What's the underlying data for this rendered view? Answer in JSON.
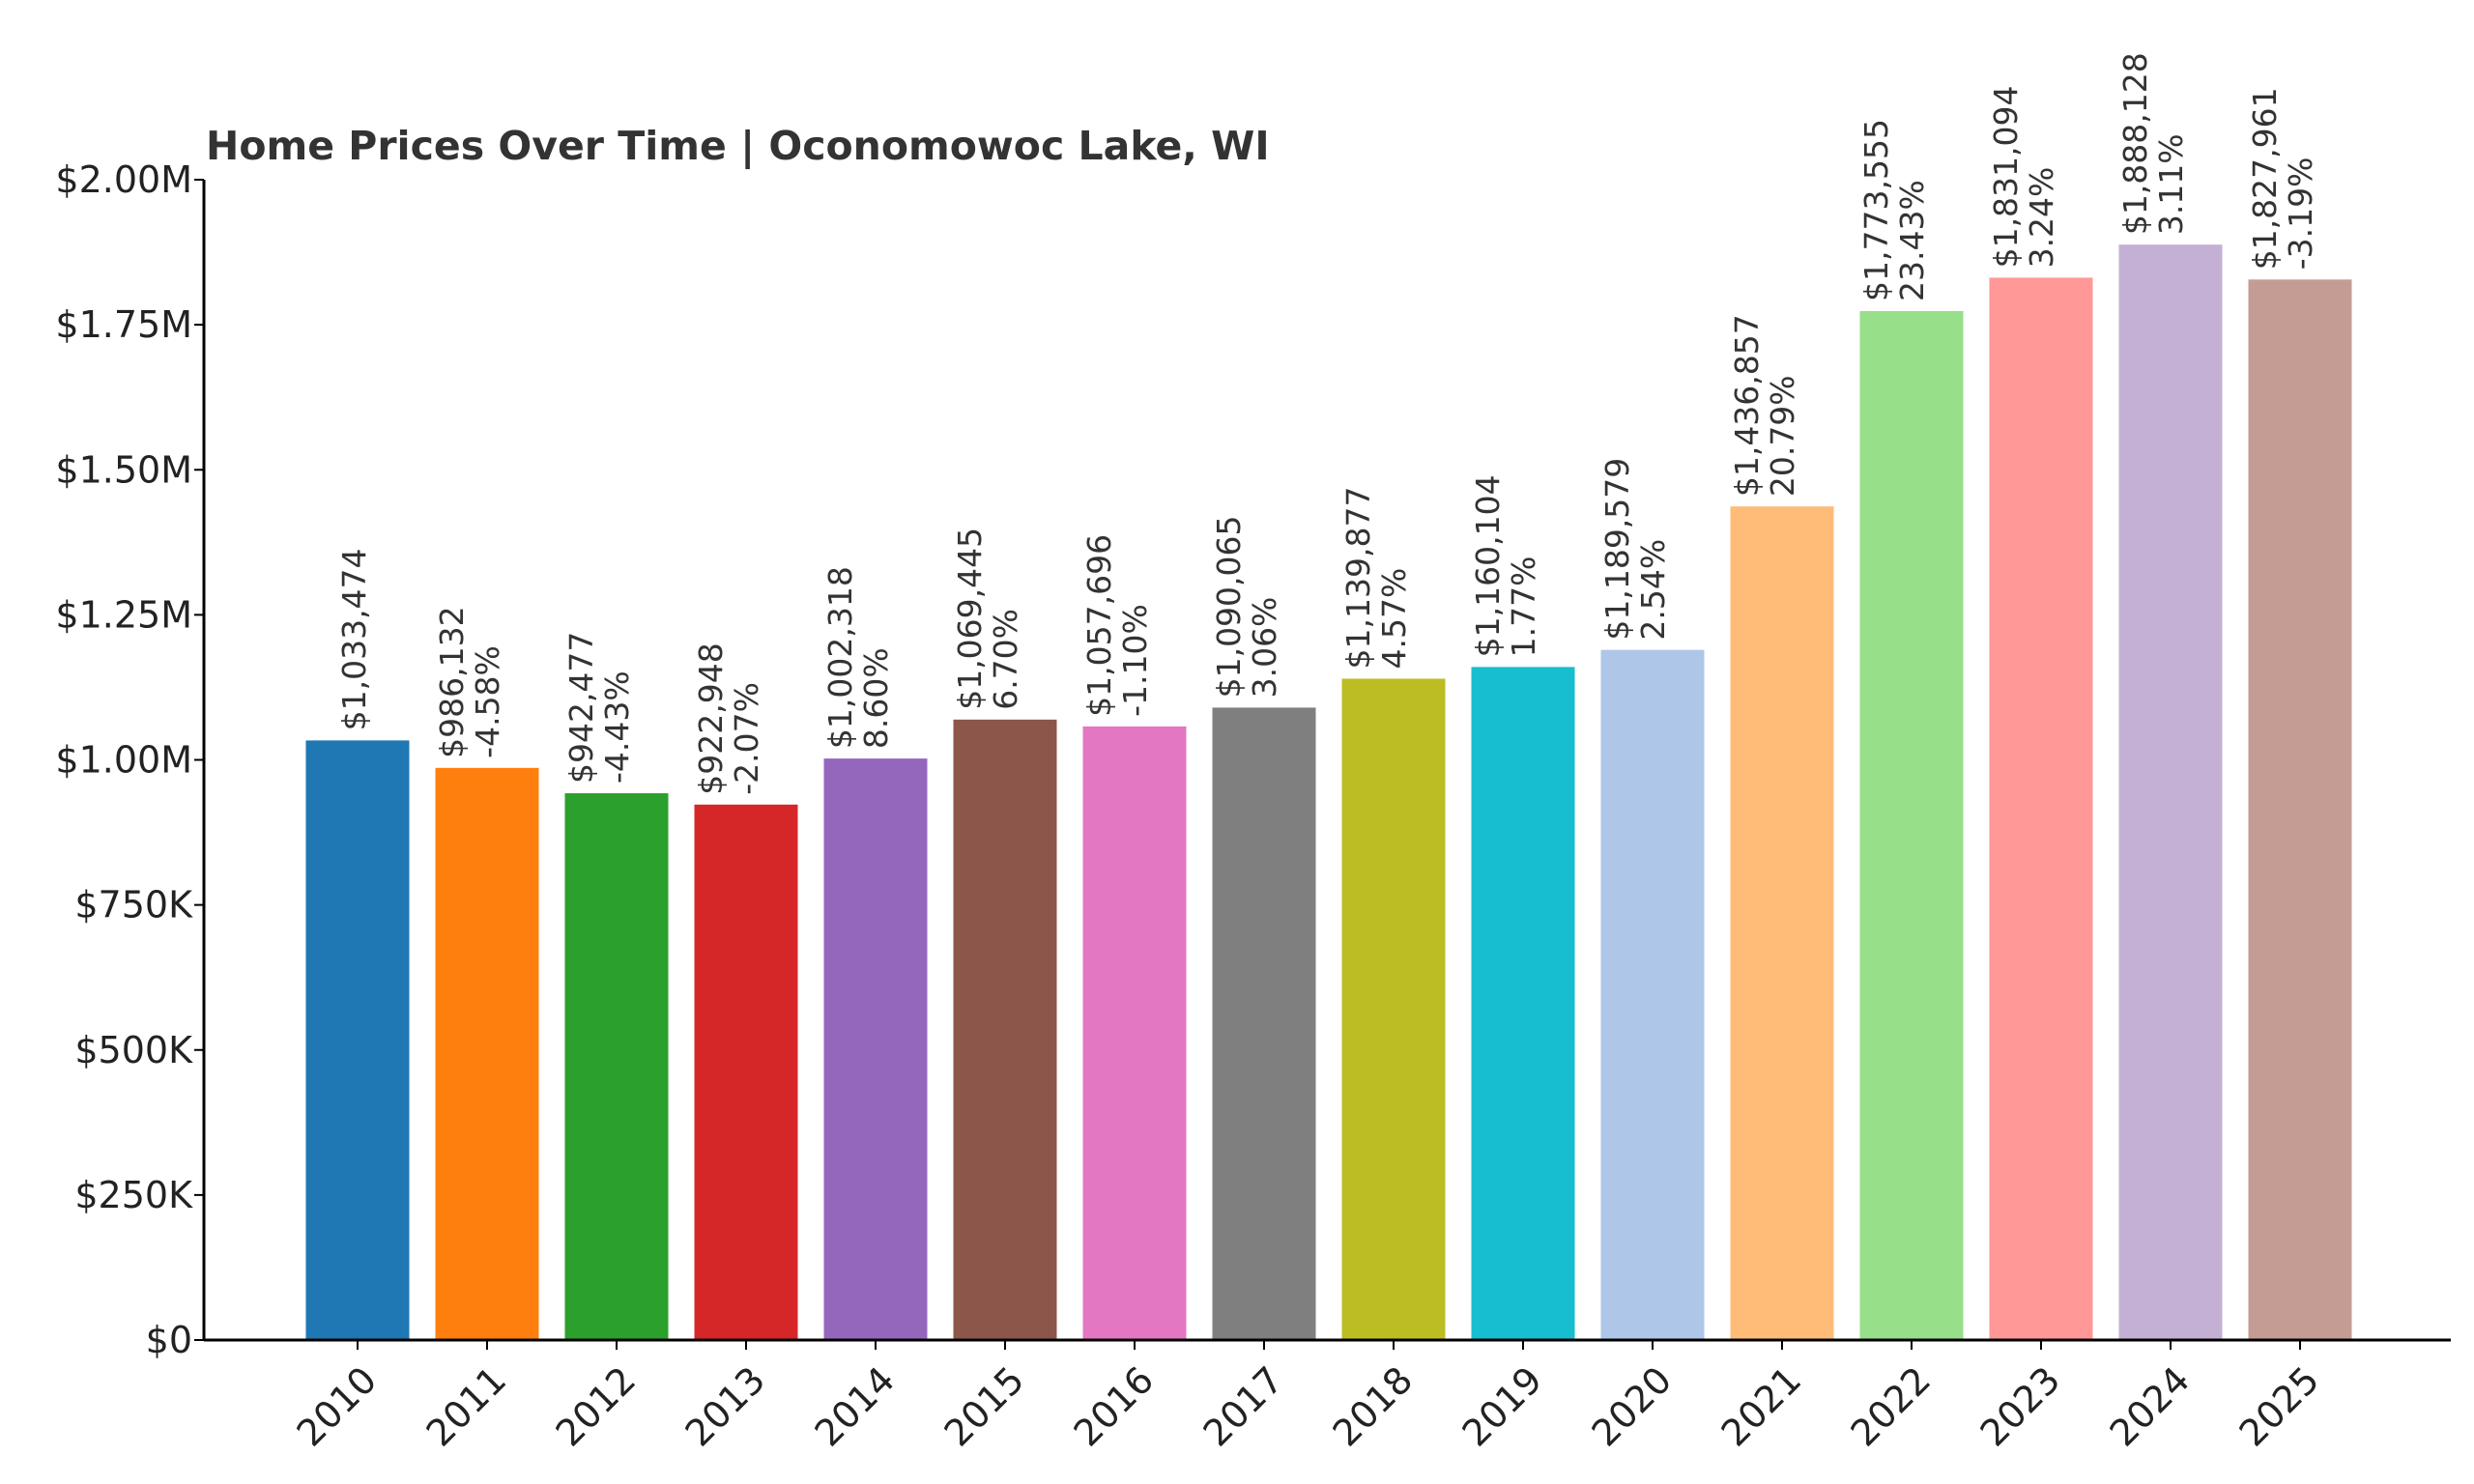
{
  "chart_data": {
    "type": "bar",
    "title": "Home Prices Over Time | Oconomowoc Lake, WI",
    "xlabel": "",
    "ylabel": "",
    "ylim": [
      0,
      2000000
    ],
    "yticks": [
      {
        "value": 0,
        "label": "$0"
      },
      {
        "value": 250000,
        "label": "$250K"
      },
      {
        "value": 500000,
        "label": "$500K"
      },
      {
        "value": 750000,
        "label": "$750K"
      },
      {
        "value": 1000000,
        "label": "$1.00M"
      },
      {
        "value": 1250000,
        "label": "$1.25M"
      },
      {
        "value": 1500000,
        "label": "$1.50M"
      },
      {
        "value": 1750000,
        "label": "$1.75M"
      },
      {
        "value": 2000000,
        "label": "$2.00M"
      }
    ],
    "grid": false,
    "legend": "none",
    "categories": [
      "2010",
      "2011",
      "2012",
      "2013",
      "2014",
      "2015",
      "2016",
      "2017",
      "2018",
      "2019",
      "2020",
      "2021",
      "2022",
      "2023",
      "2024",
      "2025"
    ],
    "values": [
      1033474,
      986132,
      942477,
      922948,
      1002318,
      1069445,
      1057696,
      1090065,
      1139877,
      1160104,
      1189579,
      1436857,
      1773555,
      1831094,
      1888128,
      1827961
    ],
    "value_labels": [
      "$1,033,474",
      "$986,132",
      "$942,477",
      "$922,948",
      "$1,002,318",
      "$1,069,445",
      "$1,057,696",
      "$1,090,065",
      "$1,139,877",
      "$1,160,104",
      "$1,189,579",
      "$1,436,857",
      "$1,773,555",
      "$1,831,094",
      "$1,888,128",
      "$1,827,961"
    ],
    "change_labels": [
      "",
      "-4.58%",
      "-4.43%",
      "-2.07%",
      "8.60%",
      "6.70%",
      "-1.10%",
      "3.06%",
      "4.57%",
      "1.77%",
      "2.54%",
      "20.79%",
      "23.43%",
      "3.24%",
      "3.11%",
      "-3.19%"
    ],
    "colors": [
      "#1f77b4",
      "#ff7f0e",
      "#2ca02c",
      "#d62728",
      "#9467bd",
      "#8c564b",
      "#e377c2",
      "#7f7f7f",
      "#bcbd22",
      "#17becf",
      "#aec7e8",
      "#ffbb78",
      "#98df8a",
      "#ff9896",
      "#c5b0d5",
      "#c49c94"
    ]
  }
}
